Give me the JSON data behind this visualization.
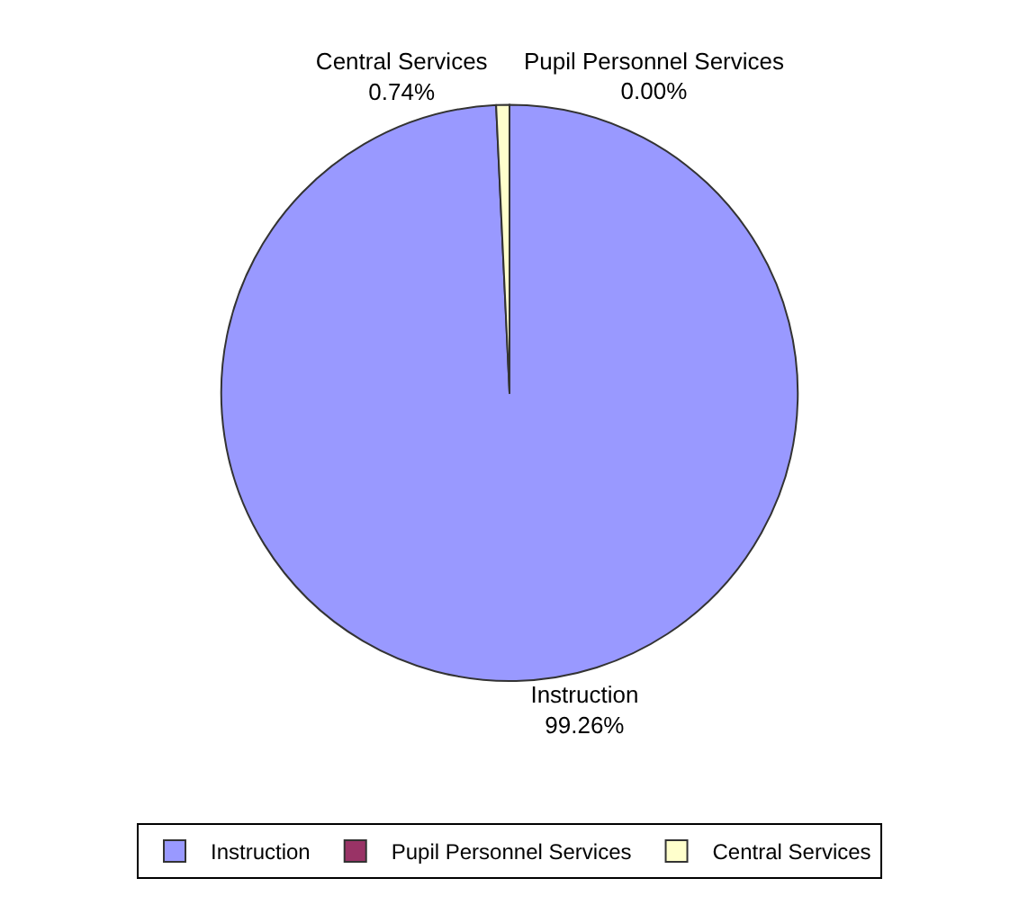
{
  "chart_data": {
    "type": "pie",
    "categories": [
      "Instruction",
      "Pupil Personnel Services",
      "Central Services"
    ],
    "values": [
      99.26,
      0.0,
      0.74
    ],
    "value_labels": [
      "99.26%",
      "0.00%",
      "0.74%"
    ],
    "colors": [
      "#9999ff",
      "#993366",
      "#ffffcc"
    ],
    "legend": "bottom"
  }
}
